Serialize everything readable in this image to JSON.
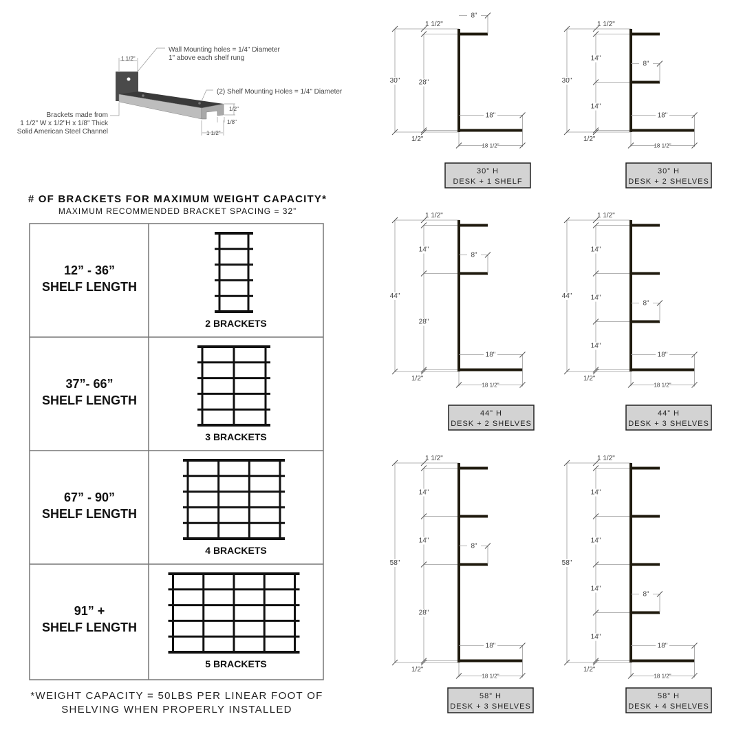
{
  "bracket_detail": {
    "wall_holes_line1": "Wall Mounting holes = 1/4\" Diameter",
    "wall_holes_line2": "1\" above each shelf rung",
    "shelf_holes": "(2) Shelf Mounting Holes = 1/4\" Diameter",
    "material_line1": "Brackets made from",
    "material_line2": "1 1/2\" W x 1/2\"H x 1/8\" Thick",
    "material_line3": "Solid American Steel Channel",
    "dim_top_width": "1 1/2\"",
    "dim_height": "1/2\"",
    "dim_thickness": "1/8\"",
    "dim_end_width": "1 1/2\"",
    "colors": {
      "plate": "#4a4a4a",
      "channel_top": "#3a3a3a",
      "channel_face": "#bdbdbd"
    }
  },
  "capacity_table": {
    "title": "# OF BRACKETS FOR MAXIMUM WEIGHT CAPACITY*",
    "subtitle": "MAXIMUM RECOMMENDED BRACKET SPACING = 32”",
    "rows": [
      {
        "range": "12” - 36”",
        "label": "SHELF LENGTH",
        "brackets": 2,
        "brackets_label": "2 BRACKETS"
      },
      {
        "range": "37”- 66”",
        "label": "SHELF LENGTH",
        "brackets": 3,
        "brackets_label": "3 BRACKETS"
      },
      {
        "range": "67” - 90”",
        "label": "SHELF LENGTH",
        "brackets": 4,
        "brackets_label": "4 BRACKETS"
      },
      {
        "range": "91” +",
        "label": "SHELF LENGTH",
        "brackets": 5,
        "brackets_label": "5 BRACKETS"
      }
    ],
    "footnote_line1": "*WEIGHT CAPACITY = 50LBS PER LINEAR FOOT OF",
    "footnote_line2": "SHELVING WHEN PROPERLY INSTALLED"
  },
  "configurations": [
    {
      "height": 30,
      "height_label": "30\"",
      "segments": [
        "28\""
      ],
      "top_gap": "1 1/2\"",
      "bottom_gap": "1/2\"",
      "shelf_depth": "8\"",
      "desk_depth": "18\"",
      "desk_total": "18 1/2\"",
      "title": "30” H",
      "subtitle": "DESK + 1 SHELF"
    },
    {
      "height": 30,
      "height_label": "30\"",
      "segments": [
        "14\"",
        "14\""
      ],
      "top_gap": "1 1/2\"",
      "bottom_gap": "1/2\"",
      "shelf_depth": "8\"",
      "desk_depth": "18\"",
      "desk_total": "18 1/2\"",
      "title": "30” H",
      "subtitle": "DESK + 2 SHELVES"
    },
    {
      "height": 44,
      "height_label": "44\"",
      "segments": [
        "14\"",
        "28\""
      ],
      "top_gap": "1 1/2\"",
      "bottom_gap": "1/2\"",
      "shelf_depth": "8\"",
      "desk_depth": "18\"",
      "desk_total": "18 1/2\"",
      "title": "44” H",
      "subtitle": "DESK + 2 SHELVES"
    },
    {
      "height": 44,
      "height_label": "44\"",
      "segments": [
        "14\"",
        "14\"",
        "14\""
      ],
      "top_gap": "1 1/2\"",
      "bottom_gap": "1/2\"",
      "shelf_depth": "8\"",
      "desk_depth": "18\"",
      "desk_total": "18 1/2\"",
      "title": "44” H",
      "subtitle": "DESK + 3 SHELVES"
    },
    {
      "height": 58,
      "height_label": "58\"",
      "segments": [
        "14\"",
        "14\"",
        "28\""
      ],
      "top_gap": "1 1/2\"",
      "bottom_gap": "1/2\"",
      "shelf_depth": "8\"",
      "desk_depth": "18\"",
      "desk_total": "18 1/2\"",
      "title": "58” H",
      "subtitle": "DESK + 3 SHELVES"
    },
    {
      "height": 58,
      "height_label": "58\"",
      "segments": [
        "14\"",
        "14\"",
        "14\"",
        "14\""
      ],
      "top_gap": "1 1/2\"",
      "bottom_gap": "1/2\"",
      "shelf_depth": "8\"",
      "desk_depth": "18\"",
      "desk_total": "18 1/2\"",
      "title": "58” H",
      "subtitle": "DESK + 4 SHELVES"
    }
  ],
  "colors": {
    "steel": "#1f1a0e",
    "dimension": "#9a9a9a",
    "label_box": "#d3d3d3",
    "grid": "#777777"
  }
}
